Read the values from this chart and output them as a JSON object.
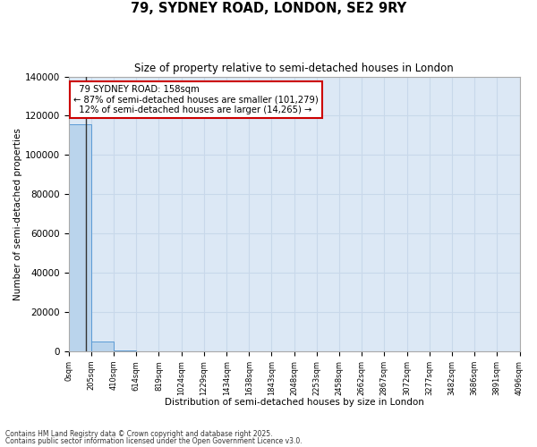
{
  "title": "79, SYDNEY ROAD, LONDON, SE2 9RY",
  "subtitle": "Size of property relative to semi-detached houses in London",
  "xlabel": "Distribution of semi-detached houses by size in London",
  "ylabel": "Number of semi-detached properties",
  "property_size": 158,
  "property_label": "79 SYDNEY ROAD: 158sqm",
  "pct_smaller": 87,
  "count_smaller": 101279,
  "pct_larger": 12,
  "count_larger": 14265,
  "bar_edges": [
    0,
    205,
    410,
    614,
    819,
    1024,
    1229,
    1434,
    1638,
    1843,
    2048,
    2253,
    2458,
    2662,
    2867,
    3072,
    3277,
    3482,
    3686,
    3891,
    4096
  ],
  "bar_heights": [
    115544,
    5200,
    350,
    80,
    30,
    15,
    8,
    4,
    2,
    2,
    1,
    1,
    1,
    0,
    0,
    0,
    0,
    0,
    0,
    0
  ],
  "bar_color": "#bad4ec",
  "bar_edge_color": "#5b9bd5",
  "grid_color": "#c8d8ea",
  "background_color": "#dce8f5",
  "annotation_box_edge_color": "#cc0000",
  "ylim": [
    0,
    140000
  ],
  "yticks": [
    0,
    20000,
    40000,
    60000,
    80000,
    100000,
    120000,
    140000
  ],
  "footnote1": "Contains HM Land Registry data © Crown copyright and database right 2025.",
  "footnote2": "Contains public sector information licensed under the Open Government Licence v3.0."
}
